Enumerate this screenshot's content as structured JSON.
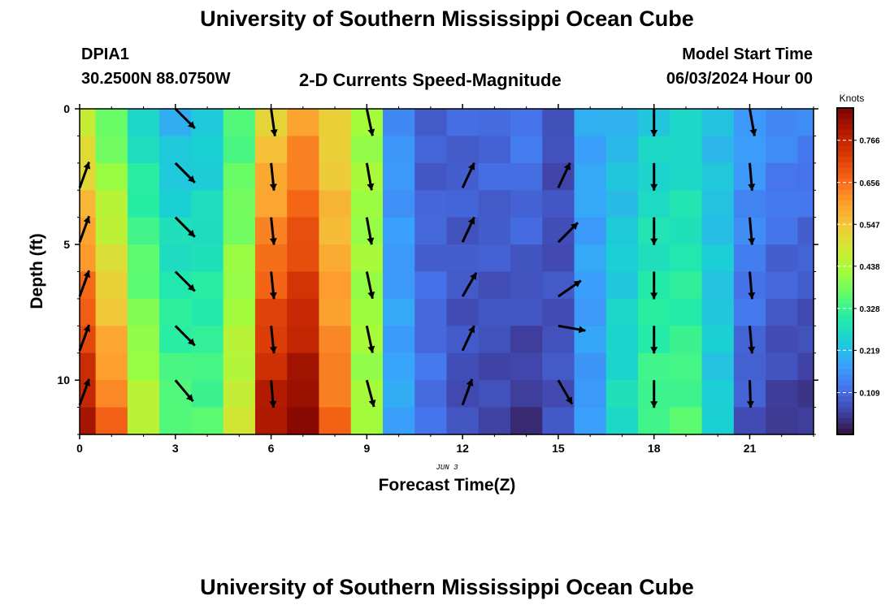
{
  "page": {
    "title_top": "University of Southern Mississippi Ocean Cube",
    "title_bottom": "University of Southern Mississippi Ocean Cube",
    "station_id": "DPIA1",
    "station_coords": "30.2500N  88.0750W",
    "chart_heading": "2-D Currents Speed-Magnitude",
    "model_start_label": "Model Start Time",
    "model_start_value": "06/03/2024 Hour 00",
    "date_label": "JUN 3"
  },
  "colors": {
    "colormap": [
      "#30123b",
      "#4145ab",
      "#4675ed",
      "#39a2fc",
      "#1bcfd4",
      "#24eca6",
      "#61fc6c",
      "#a4fc3b",
      "#d1e834",
      "#f3c63a",
      "#fe9b2d",
      "#f36315",
      "#d93806",
      "#b11901",
      "#7a0402"
    ],
    "arrow": "#000000",
    "axis": "#000000"
  },
  "chart_data": {
    "type": "heatmap",
    "title": "2-D Currents Speed-Magnitude",
    "xlabel": "Forecast Time(Z)",
    "ylabel": "Depth (ft)",
    "xlim": [
      0,
      23
    ],
    "ylim": [
      0,
      12
    ],
    "y_inverted": true,
    "x_ticks": [
      0,
      3,
      6,
      9,
      12,
      15,
      18,
      21
    ],
    "x_tick_labels": [
      "0",
      "3",
      "6",
      "9",
      "12",
      "15",
      "18",
      "21"
    ],
    "y_ticks": [
      0,
      5,
      10
    ],
    "y_tick_labels": [
      "0",
      "5",
      "10"
    ],
    "colorbar": {
      "label": "Knots",
      "min": 0.0,
      "max": 0.85,
      "ticks": [
        0.109,
        0.219,
        0.328,
        0.438,
        0.547,
        0.656,
        0.766
      ],
      "tick_labels": [
        "0.109",
        "0.219",
        "0.328",
        "0.438",
        "0.547",
        "0.656",
        "0.766"
      ]
    },
    "hours": [
      0,
      1,
      2,
      3,
      4,
      5,
      6,
      7,
      8,
      9,
      10,
      11,
      12,
      13,
      14,
      15,
      16,
      17,
      18,
      19,
      20,
      21,
      22,
      23
    ],
    "depth_levels": [
      0,
      1,
      2,
      3,
      4,
      5,
      6,
      7,
      8,
      9,
      10,
      11
    ],
    "speed_profile_surface": [
      0.47,
      0.36,
      0.26,
      0.21,
      0.23,
      0.34,
      0.53,
      0.6,
      0.52,
      0.42,
      0.16,
      0.09,
      0.1,
      0.11,
      0.13,
      0.07,
      0.19,
      0.21,
      0.24,
      0.25,
      0.22,
      0.18,
      0.15,
      0.14
    ],
    "speed_profile_bottom": [
      0.8,
      0.66,
      0.46,
      0.36,
      0.35,
      0.48,
      0.8,
      0.84,
      0.66,
      0.42,
      0.19,
      0.12,
      0.07,
      0.06,
      0.04,
      0.08,
      0.17,
      0.27,
      0.34,
      0.35,
      0.24,
      0.08,
      0.05,
      0.04
    ],
    "vectors": {
      "note": "direction in degrees clockwise from north (toward)",
      "rows_depth": [
        0.5,
        2.5,
        4.5,
        6.5,
        8.5,
        10.5
      ],
      "points": [
        {
          "hour": 0.0,
          "dirs": [
            null,
            20,
            20,
            20,
            20,
            20
          ]
        },
        {
          "hour": 3.0,
          "dirs": [
            135,
            135,
            135,
            135,
            135,
            140
          ]
        },
        {
          "hour": 6.0,
          "dirs": [
            172,
            174,
            174,
            174,
            174,
            175
          ]
        },
        {
          "hour": 9.0,
          "dirs": [
            168,
            170,
            170,
            168,
            168,
            165
          ]
        },
        {
          "hour": 12.0,
          "dirs": [
            null,
            25,
            25,
            30,
            25,
            20
          ]
        },
        {
          "hour": 15.0,
          "dirs": [
            null,
            25,
            45,
            55,
            100,
            150
          ]
        },
        {
          "hour": 18.0,
          "dirs": [
            180,
            180,
            180,
            180,
            180,
            180
          ]
        },
        {
          "hour": 21.0,
          "dirs": [
            170,
            175,
            175,
            175,
            175,
            178
          ]
        }
      ]
    }
  }
}
